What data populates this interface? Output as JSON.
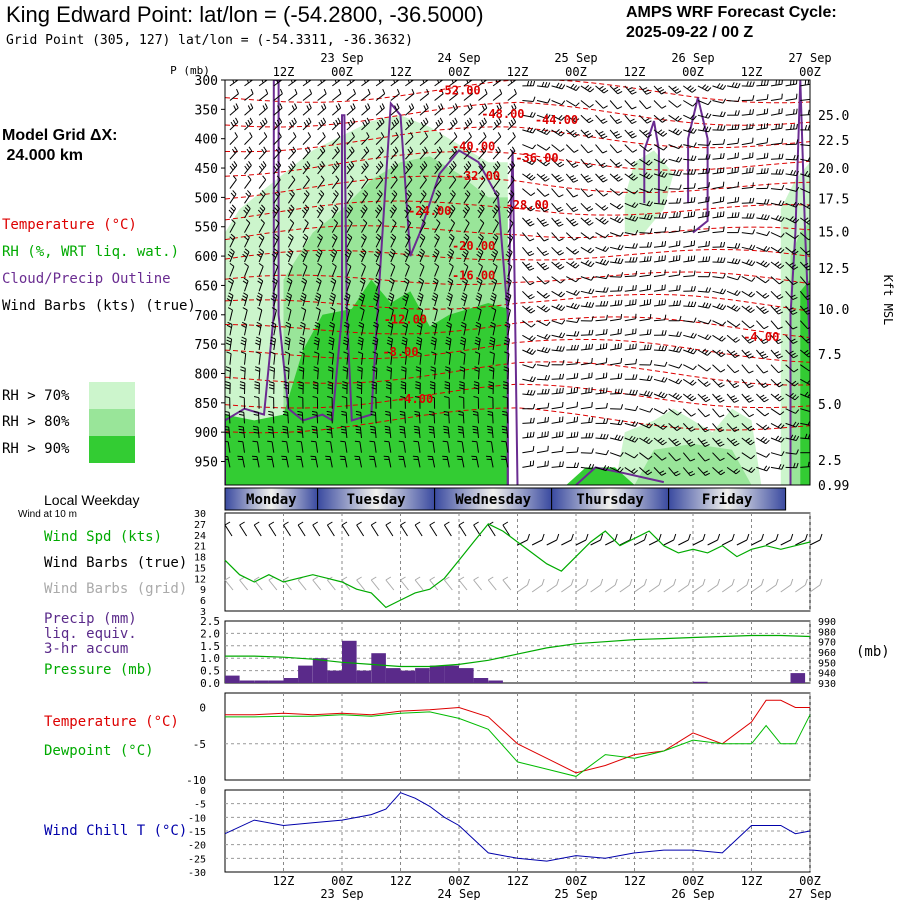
{
  "header": {
    "title": "King Edward Point:  lat/lon = (-54.2800, -36.5000)",
    "grid_point": "Grid Point (305, 127) lat/lon = (-54.3311, -36.3632)",
    "cycle_line1": "AMPS WRF Forecast Cycle:",
    "cycle_line2": "2025-09-22 / 00  Z"
  },
  "left_legend": {
    "model_grid_line1": "Model Grid ΔX:",
    "model_grid_line2": " 24.000 km",
    "temperature": "Temperature (°C)",
    "rh": "RH (%, WRT liq. wat.)",
    "cloud": "Cloud/Precip Outline",
    "wind_barbs": "Wind Barbs (kts) (true)",
    "rh70": "RH > 70%",
    "rh80": "RH > 80%",
    "rh90": "RH > 90%"
  },
  "colors": {
    "rh70": "#ccf5cc",
    "rh80": "#99e599",
    "rh90": "#33cc33",
    "temperature": "#dd0000",
    "cloud": "#6a2c91",
    "wind_speed": "#00aa00",
    "wind_barbs_grid": "#aaaaaa",
    "precip": "#5a2a8a",
    "pressure": "#00aa00",
    "dewpoint": "#00bb00",
    "wind_chill": "#0000aa"
  },
  "time_axis": {
    "ticks": [
      "12Z",
      "00Z",
      "12Z",
      "00Z",
      "12Z",
      "00Z",
      "12Z",
      "00Z",
      "12Z",
      "00Z"
    ],
    "hours": [
      12,
      24,
      36,
      48,
      60,
      72,
      84,
      96,
      108,
      120
    ],
    "date_labels": [
      "23 Sep",
      "24 Sep",
      "25 Sep",
      "26 Sep",
      "27 Sep"
    ],
    "date_hours": [
      24,
      48,
      72,
      96,
      120
    ],
    "range": [
      0,
      120
    ]
  },
  "weekday_bar": {
    "label": "Local Weekday",
    "days": [
      "Monday",
      "Tuesday",
      "Wednesday",
      "Thursday",
      "Friday"
    ]
  },
  "chart_data": [
    {
      "type": "area",
      "name": "cross_section",
      "yaxis_title": "P (mb)",
      "pressure_ticks": [
        300,
        350,
        400,
        450,
        500,
        550,
        600,
        650,
        700,
        750,
        800,
        850,
        900,
        950
      ],
      "ylim": [
        300,
        990
      ],
      "height_axis_title": "Kft MSL",
      "height_ticks": [
        "25.0",
        "22.5",
        "20.0",
        "17.5",
        "15.0",
        "12.5",
        "10.0",
        "7.5",
        "5.0",
        "2.5",
        "0.99"
      ],
      "height_tick_pressures": [
        360,
        402,
        450,
        502,
        558,
        620,
        690,
        767,
        852,
        947,
        990
      ],
      "temperature_labels": [
        {
          "text": "-52.00",
          "hour": 48,
          "p": 325
        },
        {
          "text": "-48.00",
          "hour": 57,
          "p": 365
        },
        {
          "text": "-44.00",
          "hour": 68,
          "p": 375
        },
        {
          "text": "-40.00",
          "hour": 51,
          "p": 420
        },
        {
          "text": "-36.00",
          "hour": 64,
          "p": 440
        },
        {
          "text": "-32.00",
          "hour": 52,
          "p": 470
        },
        {
          "text": "-28.00",
          "hour": 62,
          "p": 520
        },
        {
          "text": "-24.00",
          "hour": 42,
          "p": 530
        },
        {
          "text": "-20.00",
          "hour": 51,
          "p": 590
        },
        {
          "text": "-16.00",
          "hour": 51,
          "p": 640
        },
        {
          "text": "-12.00",
          "hour": 37,
          "p": 715
        },
        {
          "text": "-8.00",
          "hour": 36,
          "p": 770
        },
        {
          "text": "-4.00",
          "hour": 39,
          "p": 850
        },
        {
          "text": "-4.00",
          "hour": 110,
          "p": 745
        }
      ]
    },
    {
      "type": "line",
      "name": "surface_wind",
      "label_10m": "Wind at 10 m",
      "legend_speed": "Wind Spd (kts)",
      "legend_barbs_true": "Wind Barbs (true)",
      "legend_barbs_grid": "Wind Barbs (grid)",
      "ylim": [
        3,
        30
      ],
      "yticks": [
        3,
        6,
        9,
        12,
        15,
        18,
        21,
        24,
        27,
        30
      ],
      "x": [
        0,
        3,
        6,
        9,
        12,
        15,
        18,
        21,
        24,
        27,
        30,
        33,
        36,
        39,
        42,
        45,
        48,
        51,
        54,
        57,
        60,
        63,
        66,
        69,
        72,
        75,
        78,
        81,
        84,
        87,
        90,
        93,
        96,
        99,
        102,
        105,
        108,
        111,
        114,
        117,
        120
      ],
      "speed": [
        17,
        13,
        11,
        13,
        11,
        12,
        13,
        12,
        11,
        9,
        8,
        4,
        6,
        8,
        9,
        12,
        17,
        22,
        27,
        25,
        22,
        19,
        16,
        14,
        18,
        22,
        25,
        21,
        23,
        25,
        21,
        19,
        20,
        19,
        21,
        18,
        20,
        21,
        20,
        21,
        22
      ]
    },
    {
      "type": "bar",
      "name": "precip_pressure",
      "legend_precip_line1": "Precip (mm)",
      "legend_precip_line2": "liq. equiv.",
      "legend_precip_line3": "3-hr accum",
      "legend_pressure": "Pressure (mb)",
      "pressure_unit": "(mb)",
      "precip_ylim": [
        0,
        2.5
      ],
      "precip_yticks": [
        "0.0",
        "0.5",
        "1.0",
        "1.5",
        "2.0",
        "2.5"
      ],
      "precip_ytick_values": [
        0,
        0.5,
        1.0,
        1.5,
        2.0,
        2.5
      ],
      "pressure_ylim": [
        930,
        990
      ],
      "pressure_yticks": [
        930,
        940,
        950,
        960,
        970,
        980,
        990
      ],
      "precip_x": [
        1.5,
        4.5,
        7.5,
        10.5,
        13.5,
        16.5,
        19.5,
        22.5,
        25.5,
        28.5,
        31.5,
        34.5,
        37.5,
        40.5,
        43.5,
        46.5,
        49.5,
        52.5,
        55.5,
        97.5,
        117.5
      ],
      "precip": [
        0.3,
        0.1,
        0.1,
        0.1,
        0.2,
        0.7,
        1.0,
        0.5,
        1.7,
        0.5,
        1.2,
        0.6,
        0.5,
        0.6,
        0.7,
        0.7,
        0.6,
        0.2,
        0.1,
        0.05,
        0.4
      ],
      "pressure_x": [
        0,
        6,
        12,
        18,
        24,
        30,
        36,
        42,
        48,
        54,
        60,
        66,
        72,
        78,
        84,
        90,
        96,
        102,
        108,
        114,
        120
      ],
      "pressure": [
        956,
        956,
        955,
        953,
        950,
        948,
        946,
        946,
        948,
        952,
        958,
        964,
        968,
        970,
        972,
        973,
        974,
        975,
        976,
        976,
        975
      ]
    },
    {
      "type": "line",
      "name": "temperature_dewpoint",
      "legend_temp": "Temperature (°C)",
      "legend_dew": "Dewpoint (°C)",
      "ylim": [
        -10,
        2
      ],
      "yticks": [
        0,
        -5,
        -10
      ],
      "x": [
        0,
        6,
        12,
        18,
        24,
        30,
        36,
        42,
        48,
        54,
        60,
        66,
        72,
        78,
        84,
        90,
        96,
        102,
        108,
        111,
        114,
        117,
        120
      ],
      "temperature": [
        -1,
        -1,
        -0.8,
        -1,
        -0.8,
        -1,
        -0.5,
        -0.3,
        0,
        -1.3,
        -5,
        -7,
        -9,
        -8,
        -6.5,
        -6,
        -3.5,
        -5,
        -2,
        1,
        1,
        0,
        0
      ],
      "dewpoint": [
        -1.3,
        -1.3,
        -1.2,
        -1.2,
        -1,
        -1.2,
        -0.8,
        -0.6,
        -1.5,
        -3,
        -7.5,
        -8.5,
        -9.5,
        -6.5,
        -7,
        -6,
        -4.5,
        -5,
        -5,
        -2.5,
        -5,
        -5,
        -1
      ]
    },
    {
      "type": "line",
      "name": "wind_chill",
      "legend": "Wind Chill T (°C)",
      "ylim": [
        -30,
        0
      ],
      "yticks": [
        0,
        -5,
        -10,
        -15,
        -20,
        -25,
        -30
      ],
      "x": [
        0,
        6,
        12,
        18,
        24,
        30,
        33,
        36,
        39,
        42,
        45,
        48,
        54,
        60,
        66,
        72,
        78,
        84,
        90,
        96,
        102,
        108,
        114,
        117,
        120
      ],
      "wind_chill": [
        -16,
        -11,
        -13,
        -12,
        -11,
        -9,
        -7,
        -1,
        -3,
        -6,
        -10,
        -13,
        -23,
        -25,
        -26,
        -24,
        -25,
        -23,
        -22,
        -22,
        -23,
        -13,
        -13,
        -16,
        -15
      ]
    }
  ]
}
